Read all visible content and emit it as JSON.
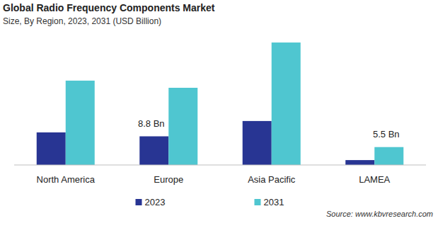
{
  "chart_data": {
    "type": "bar",
    "title": "Global Radio Frequency Components Market",
    "subtitle": "Size, By Region, 2023, 2031 (USD Billion)",
    "source": "Source: www.kbvresearch.com",
    "categories": [
      "North America",
      "Europe",
      "Asia Pacific",
      "LAMEA"
    ],
    "series": [
      {
        "name": "2023",
        "color": "#283593",
        "values": [
          10.0,
          8.8,
          13.5,
          1.5
        ],
        "value_labels": [
          null,
          "8.8 Bn",
          null,
          null
        ]
      },
      {
        "name": "2031",
        "color": "#4fc6d0",
        "values": [
          25.9,
          23.7,
          37.6,
          5.5
        ],
        "value_labels": [
          null,
          null,
          null,
          "5.5 Bn"
        ]
      }
    ],
    "ylim": [
      0,
      40
    ],
    "data_labels": true,
    "tick_labels": "x",
    "grid": false,
    "legend": "bottom"
  }
}
